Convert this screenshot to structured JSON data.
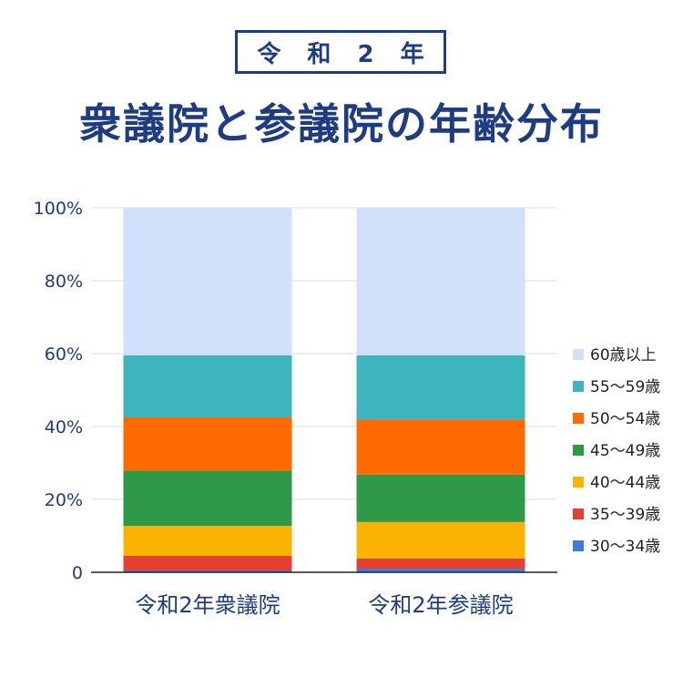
{
  "header": {
    "badge": "令 和 2 年",
    "title": "衆議院と参議院の年齢分布"
  },
  "chart_data": {
    "type": "bar",
    "stacked": true,
    "categories": [
      "令和2年衆議院",
      "令和2年参議院"
    ],
    "y_ticks": [
      "0",
      "20%",
      "40%",
      "60%",
      "80%",
      "100%"
    ],
    "ylim": [
      0,
      100
    ],
    "grid": true,
    "legend_position": "right",
    "series": [
      {
        "name": "30〜34歳",
        "color": "#3d7bdf",
        "values": [
          0.5,
          1.0
        ]
      },
      {
        "name": "35〜39歳",
        "color": "#e64034",
        "values": [
          4.0,
          2.8
        ]
      },
      {
        "name": "40〜44歳",
        "color": "#fbb201",
        "values": [
          8.2,
          10.0
        ]
      },
      {
        "name": "45〜49歳",
        "color": "#2e9a47",
        "values": [
          15.2,
          13.0
        ]
      },
      {
        "name": "50〜54歳",
        "color": "#ff6a00",
        "values": [
          14.6,
          15.1
        ]
      },
      {
        "name": "55〜59歳",
        "color": "#3db4be",
        "values": [
          17.0,
          17.6
        ]
      },
      {
        "name": "60歳以上",
        "color": "#d2e1fb",
        "values": [
          40.5,
          40.5
        ]
      }
    ]
  }
}
